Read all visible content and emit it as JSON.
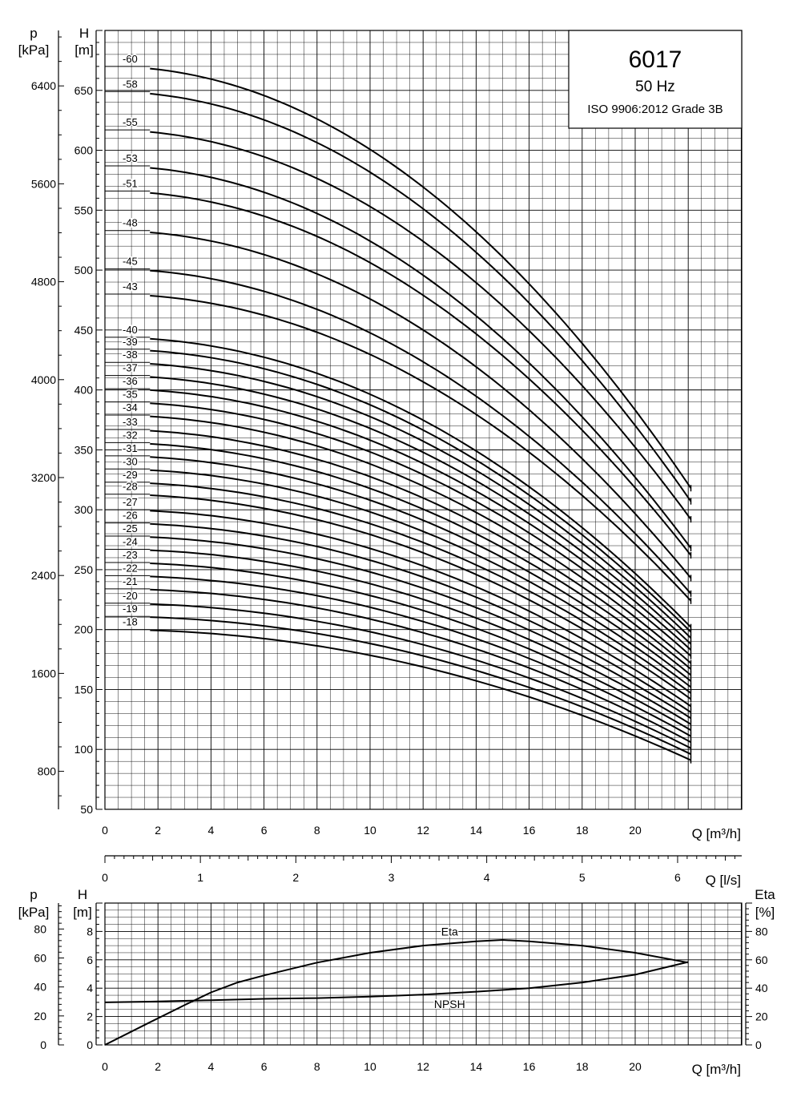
{
  "info_box": {
    "model": "6017",
    "frequency": "50 Hz",
    "standard": "ISO 9906:2012 Grade 3B"
  },
  "top_axes": {
    "pressure_title": "p",
    "pressure_unit": "[kPa]",
    "head_title": "H",
    "head_unit": "[m]",
    "flow_title": "Q [m³/h]",
    "flow_ls_title": "Q [l/s]",
    "head_ticks": [
      50,
      100,
      150,
      200,
      250,
      300,
      350,
      400,
      450,
      500,
      550,
      600,
      650
    ],
    "pressure_ticks": [
      800,
      1600,
      2400,
      3200,
      4000,
      4800,
      5600,
      6400
    ],
    "flow_ticks": [
      0,
      2,
      4,
      6,
      8,
      10,
      12,
      14,
      16,
      18,
      20
    ],
    "flow_ls_ticks": [
      0,
      1,
      2,
      3,
      4,
      5,
      6
    ]
  },
  "bottom_axes": {
    "pressure_title": "p",
    "pressure_unit": "[kPa]",
    "head_title": "H",
    "head_unit": "[m]",
    "eta_title": "Eta",
    "eta_unit": "[%]",
    "flow_title": "Q [m³/h]",
    "head_ticks": [
      0,
      2,
      4,
      6,
      8
    ],
    "pressure_ticks": [
      0,
      20,
      40,
      60,
      80
    ],
    "eta_ticks": [
      0,
      20,
      40,
      60,
      80
    ],
    "flow_ticks": [
      0,
      2,
      4,
      6,
      8,
      10,
      12,
      14,
      16,
      18,
      20
    ]
  },
  "chart_data": [
    {
      "type": "line",
      "xlabel": "Q [m³/h]",
      "ylabel": "H [m]",
      "xlim": [
        0,
        24
      ],
      "ylim": [
        50,
        700
      ],
      "grid": true,
      "secondary_y": {
        "label": "p [kPa]",
        "ticks": [
          800,
          1600,
          2400,
          3200,
          4000,
          4800,
          5600,
          6400
        ]
      },
      "secondary_x": {
        "label": "Q [l/s]",
        "ticks": [
          0,
          1,
          2,
          3,
          4,
          5,
          6
        ]
      },
      "q_range": [
        1.7,
        22.1
      ],
      "series": [
        {
          "name": "-60",
          "shutoff_head": 670,
          "end_head": 318
        },
        {
          "name": "-58",
          "shutoff_head": 649,
          "end_head": 307
        },
        {
          "name": "-55",
          "shutoff_head": 617,
          "end_head": 292
        },
        {
          "name": "-53",
          "shutoff_head": 587,
          "end_head": 268
        },
        {
          "name": "-51",
          "shutoff_head": 566,
          "end_head": 262
        },
        {
          "name": "-48",
          "shutoff_head": 533,
          "end_head": 243
        },
        {
          "name": "-45",
          "shutoff_head": 501,
          "end_head": 230
        },
        {
          "name": "-43",
          "shutoff_head": 480,
          "end_head": 224
        },
        {
          "name": "-40",
          "shutoff_head": 444,
          "end_head": 202
        },
        {
          "name": "-39",
          "shutoff_head": 434,
          "end_head": 198
        },
        {
          "name": "-38",
          "shutoff_head": 423,
          "end_head": 193
        },
        {
          "name": "-37",
          "shutoff_head": 412,
          "end_head": 188
        },
        {
          "name": "-36",
          "shutoff_head": 401,
          "end_head": 183
        },
        {
          "name": "-35",
          "shutoff_head": 390,
          "end_head": 178
        },
        {
          "name": "-34",
          "shutoff_head": 379,
          "end_head": 172
        },
        {
          "name": "-33",
          "shutoff_head": 367,
          "end_head": 167
        },
        {
          "name": "-32",
          "shutoff_head": 356,
          "end_head": 162
        },
        {
          "name": "-31",
          "shutoff_head": 345,
          "end_head": 157
        },
        {
          "name": "-30",
          "shutoff_head": 334,
          "end_head": 152
        },
        {
          "name": "-29",
          "shutoff_head": 323,
          "end_head": 147
        },
        {
          "name": "-28",
          "shutoff_head": 313,
          "end_head": 142
        },
        {
          "name": "-27",
          "shutoff_head": 300,
          "end_head": 136
        },
        {
          "name": "-26",
          "shutoff_head": 289,
          "end_head": 131
        },
        {
          "name": "-25",
          "shutoff_head": 278,
          "end_head": 126
        },
        {
          "name": "-24",
          "shutoff_head": 267,
          "end_head": 121
        },
        {
          "name": "-23",
          "shutoff_head": 256,
          "end_head": 116
        },
        {
          "name": "-22",
          "shutoff_head": 245,
          "end_head": 111
        },
        {
          "name": "-21",
          "shutoff_head": 234,
          "end_head": 106
        },
        {
          "name": "-20",
          "shutoff_head": 222,
          "end_head": 101
        },
        {
          "name": "-19",
          "shutoff_head": 211,
          "end_head": 96
        },
        {
          "name": "-18",
          "shutoff_head": 200,
          "end_head": 91
        }
      ]
    },
    {
      "type": "line",
      "xlabel": "Q [m³/h]",
      "ylabel": "H [m]",
      "xlim": [
        0,
        24
      ],
      "ylim": [
        0,
        10
      ],
      "grid": true,
      "secondary_y": {
        "label": "Eta [%]",
        "ticks": [
          0,
          20,
          40,
          60,
          80
        ]
      },
      "series": [
        {
          "name": "Eta",
          "axis": "Eta [%]",
          "x": [
            0,
            1.7,
            3,
            4,
            5,
            6,
            8,
            10,
            12,
            14,
            15,
            16,
            18,
            20,
            22
          ],
          "y": [
            0,
            16,
            28,
            37,
            44,
            49,
            58,
            65,
            70,
            73,
            74,
            73,
            70,
            65,
            58
          ]
        },
        {
          "name": "NPSH",
          "axis": "H [m]",
          "x": [
            0,
            1.7,
            4,
            6,
            8,
            10,
            12,
            14,
            16,
            18,
            20,
            22
          ],
          "y": [
            3.0,
            3.05,
            3.15,
            3.25,
            3.3,
            3.4,
            3.55,
            3.75,
            4.0,
            4.4,
            4.95,
            5.85
          ]
        }
      ]
    }
  ]
}
